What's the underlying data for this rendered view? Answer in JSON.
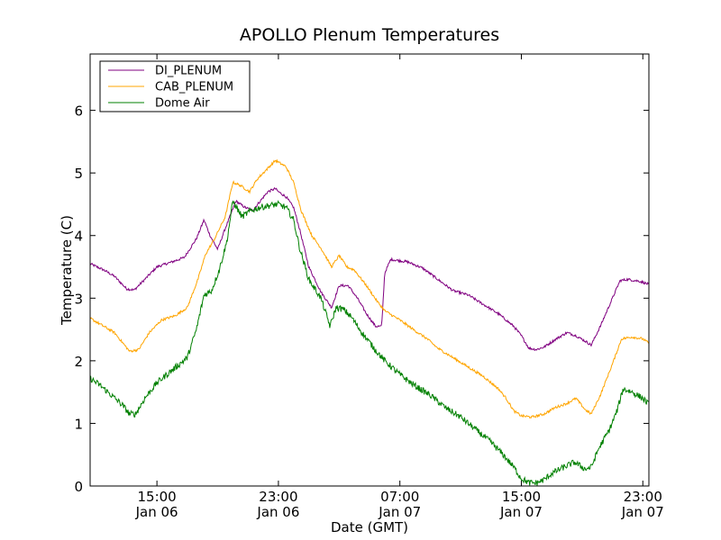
{
  "chart_data": {
    "type": "line",
    "title": "APOLLO Plenum Temperatures",
    "xlabel": "Date (GMT)",
    "ylabel": "Temperature (C)",
    "xlim": [
      10.6,
      47.4
    ],
    "ylim": [
      0,
      6.9
    ],
    "yticks": [
      0,
      1,
      2,
      3,
      4,
      5,
      6
    ],
    "ytick_labels": [
      "0",
      "1",
      "2",
      "3",
      "4",
      "5",
      "6"
    ],
    "xticks": [
      {
        "value": 15,
        "time": "15:00",
        "date": "Jan 06"
      },
      {
        "value": 23,
        "time": "23:00",
        "date": "Jan 06"
      },
      {
        "value": 31,
        "time": "07:00",
        "date": "Jan 07"
      },
      {
        "value": 39,
        "time": "15:00",
        "date": "Jan 07"
      },
      {
        "value": 47,
        "time": "23:00",
        "date": "Jan 07"
      }
    ],
    "x_units": "hours since 00:00 Jan 06 (GMT)",
    "legend_position": "top-left",
    "series": [
      {
        "name": "DI_PLENUM",
        "color": "#800080",
        "noise": 0.02,
        "points": [
          [
            10.6,
            3.55
          ],
          [
            11.5,
            3.45
          ],
          [
            12.2,
            3.35
          ],
          [
            13.0,
            3.15
          ],
          [
            13.5,
            3.13
          ],
          [
            14.2,
            3.3
          ],
          [
            15.0,
            3.5
          ],
          [
            16.0,
            3.58
          ],
          [
            16.8,
            3.65
          ],
          [
            17.6,
            3.95
          ],
          [
            18.1,
            4.25
          ],
          [
            18.5,
            4.0
          ],
          [
            19.0,
            3.78
          ],
          [
            19.4,
            4.05
          ],
          [
            19.8,
            4.3
          ],
          [
            20.2,
            4.55
          ],
          [
            20.8,
            4.45
          ],
          [
            21.3,
            4.4
          ],
          [
            21.8,
            4.55
          ],
          [
            22.3,
            4.7
          ],
          [
            22.8,
            4.75
          ],
          [
            23.0,
            4.7
          ],
          [
            23.5,
            4.62
          ],
          [
            24.0,
            4.45
          ],
          [
            24.4,
            4.1
          ],
          [
            25.0,
            3.5
          ],
          [
            25.8,
            3.1
          ],
          [
            26.5,
            2.85
          ],
          [
            27.0,
            3.2
          ],
          [
            27.6,
            3.2
          ],
          [
            28.2,
            3.0
          ],
          [
            28.8,
            2.75
          ],
          [
            29.4,
            2.55
          ],
          [
            29.8,
            2.55
          ],
          [
            30.0,
            3.4
          ],
          [
            30.4,
            3.62
          ],
          [
            31.5,
            3.58
          ],
          [
            32.5,
            3.48
          ],
          [
            33.5,
            3.3
          ],
          [
            34.5,
            3.12
          ],
          [
            35.5,
            3.05
          ],
          [
            36.5,
            2.9
          ],
          [
            37.5,
            2.75
          ],
          [
            38.5,
            2.55
          ],
          [
            39.0,
            2.4
          ],
          [
            39.5,
            2.2
          ],
          [
            40.0,
            2.18
          ],
          [
            40.5,
            2.22
          ],
          [
            41.3,
            2.35
          ],
          [
            42.0,
            2.45
          ],
          [
            42.6,
            2.4
          ],
          [
            43.3,
            2.3
          ],
          [
            43.6,
            2.25
          ],
          [
            44.2,
            2.55
          ],
          [
            45.0,
            3.0
          ],
          [
            45.5,
            3.28
          ],
          [
            46.0,
            3.3
          ],
          [
            46.8,
            3.27
          ],
          [
            47.4,
            3.22
          ]
        ]
      },
      {
        "name": "CAB_PLENUM",
        "color": "#ffa500",
        "noise": 0.02,
        "points": [
          [
            10.6,
            2.68
          ],
          [
            11.5,
            2.55
          ],
          [
            12.2,
            2.45
          ],
          [
            12.7,
            2.3
          ],
          [
            13.2,
            2.15
          ],
          [
            13.8,
            2.18
          ],
          [
            14.5,
            2.45
          ],
          [
            15.3,
            2.65
          ],
          [
            16.2,
            2.72
          ],
          [
            17.0,
            2.85
          ],
          [
            17.7,
            3.3
          ],
          [
            18.2,
            3.7
          ],
          [
            18.8,
            3.95
          ],
          [
            19.5,
            4.3
          ],
          [
            20.0,
            4.85
          ],
          [
            20.5,
            4.8
          ],
          [
            21.1,
            4.7
          ],
          [
            21.6,
            4.9
          ],
          [
            22.2,
            5.05
          ],
          [
            22.8,
            5.2
          ],
          [
            23.5,
            5.1
          ],
          [
            24.0,
            4.85
          ],
          [
            24.5,
            4.4
          ],
          [
            25.2,
            4.0
          ],
          [
            25.8,
            3.8
          ],
          [
            26.5,
            3.5
          ],
          [
            27.0,
            3.68
          ],
          [
            27.5,
            3.5
          ],
          [
            28.0,
            3.45
          ],
          [
            28.8,
            3.2
          ],
          [
            29.5,
            2.95
          ],
          [
            30.0,
            2.8
          ],
          [
            31.0,
            2.65
          ],
          [
            32.0,
            2.48
          ],
          [
            32.8,
            2.35
          ],
          [
            33.5,
            2.2
          ],
          [
            34.5,
            2.05
          ],
          [
            35.5,
            1.9
          ],
          [
            36.5,
            1.75
          ],
          [
            37.5,
            1.55
          ],
          [
            38.0,
            1.4
          ],
          [
            38.5,
            1.2
          ],
          [
            39.0,
            1.12
          ],
          [
            39.7,
            1.1
          ],
          [
            40.5,
            1.15
          ],
          [
            41.2,
            1.25
          ],
          [
            42.0,
            1.32
          ],
          [
            42.6,
            1.4
          ],
          [
            43.2,
            1.22
          ],
          [
            43.6,
            1.15
          ],
          [
            44.2,
            1.45
          ],
          [
            45.0,
            1.95
          ],
          [
            45.6,
            2.35
          ],
          [
            46.3,
            2.38
          ],
          [
            47.0,
            2.35
          ],
          [
            47.4,
            2.28
          ]
        ]
      },
      {
        "name": "Dome Air",
        "color": "#008000",
        "noise": 0.05,
        "points": [
          [
            10.6,
            1.72
          ],
          [
            11.3,
            1.6
          ],
          [
            12.0,
            1.45
          ],
          [
            12.7,
            1.3
          ],
          [
            13.2,
            1.15
          ],
          [
            13.6,
            1.15
          ],
          [
            14.2,
            1.4
          ],
          [
            15.0,
            1.65
          ],
          [
            16.0,
            1.85
          ],
          [
            17.0,
            2.05
          ],
          [
            17.6,
            2.5
          ],
          [
            18.1,
            3.05
          ],
          [
            18.6,
            3.12
          ],
          [
            19.1,
            3.45
          ],
          [
            19.6,
            3.9
          ],
          [
            20.0,
            4.55
          ],
          [
            20.6,
            4.3
          ],
          [
            21.2,
            4.4
          ],
          [
            21.8,
            4.45
          ],
          [
            22.4,
            4.48
          ],
          [
            23.0,
            4.5
          ],
          [
            23.5,
            4.45
          ],
          [
            24.0,
            4.25
          ],
          [
            24.4,
            3.8
          ],
          [
            25.0,
            3.3
          ],
          [
            25.8,
            3.0
          ],
          [
            26.4,
            2.55
          ],
          [
            26.8,
            2.85
          ],
          [
            27.3,
            2.82
          ],
          [
            27.8,
            2.7
          ],
          [
            28.5,
            2.45
          ],
          [
            29.3,
            2.2
          ],
          [
            30.0,
            2.0
          ],
          [
            31.0,
            1.78
          ],
          [
            32.0,
            1.6
          ],
          [
            33.0,
            1.45
          ],
          [
            34.0,
            1.25
          ],
          [
            35.0,
            1.1
          ],
          [
            36.0,
            0.9
          ],
          [
            37.0,
            0.7
          ],
          [
            37.8,
            0.5
          ],
          [
            38.5,
            0.3
          ],
          [
            39.0,
            0.12
          ],
          [
            39.5,
            0.05
          ],
          [
            40.0,
            0.05
          ],
          [
            40.5,
            0.1
          ],
          [
            41.0,
            0.2
          ],
          [
            41.8,
            0.3
          ],
          [
            42.5,
            0.38
          ],
          [
            43.2,
            0.27
          ],
          [
            43.6,
            0.3
          ],
          [
            44.1,
            0.6
          ],
          [
            44.8,
            0.9
          ],
          [
            45.3,
            1.2
          ],
          [
            45.7,
            1.55
          ],
          [
            46.3,
            1.5
          ],
          [
            47.0,
            1.4
          ],
          [
            47.4,
            1.3
          ]
        ]
      }
    ]
  }
}
